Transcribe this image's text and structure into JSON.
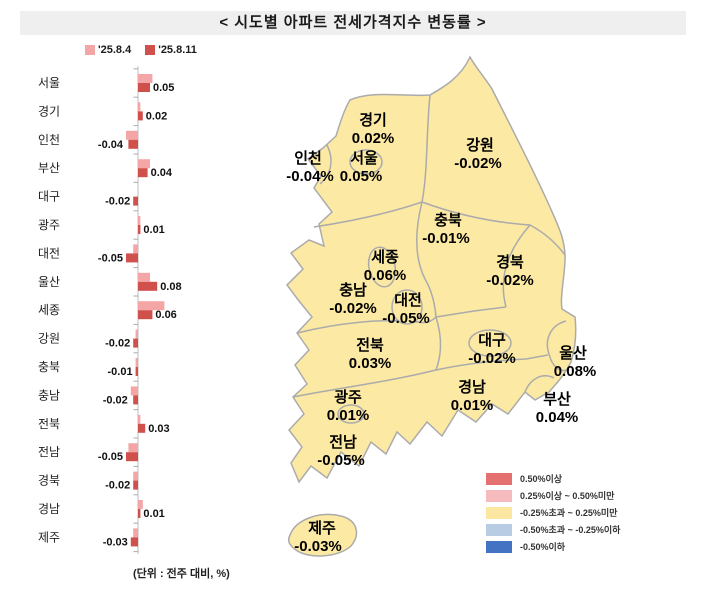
{
  "title": "< 시도별 아파트 전세가격지수 변동률 >",
  "chart": {
    "legend": [
      {
        "label": "'25.8.4",
        "color": "#F4A6A6"
      },
      {
        "label": "'25.8.11",
        "color": "#D0504C"
      }
    ],
    "unit_note": "(단위 : 전주 대비, %)"
  },
  "chart_data": {
    "type": "bar",
    "orientation": "horizontal",
    "title": "시도별 아파트 전세가격지수 변동률",
    "unit": "전주 대비, %",
    "categories": [
      "서울",
      "경기",
      "인천",
      "부산",
      "대구",
      "광주",
      "대전",
      "울산",
      "세종",
      "강원",
      "충북",
      "충남",
      "전북",
      "전남",
      "경북",
      "경남",
      "제주"
    ],
    "series": [
      {
        "name": "'25.8.4",
        "values": [
          0.06,
          0.01,
          -0.05,
          0.05,
          0.0,
          0.01,
          -0.02,
          0.05,
          0.11,
          -0.01,
          -0.01,
          -0.03,
          0.01,
          -0.04,
          -0.02,
          0.02,
          -0.02
        ]
      },
      {
        "name": "'25.8.11",
        "values": [
          0.05,
          0.02,
          -0.04,
          0.04,
          -0.02,
          0.01,
          -0.05,
          0.08,
          0.06,
          -0.02,
          -0.01,
          -0.02,
          0.03,
          -0.05,
          -0.02,
          0.01,
          -0.03
        ]
      }
    ],
    "value_labels": [
      "0.05",
      "0.02",
      "-0.04",
      "0.04",
      "-0.02",
      "0.01",
      "-0.05",
      "0.08",
      "0.06",
      "-0.02",
      "-0.01",
      "-0.02",
      "0.03",
      "-0.05",
      "-0.02",
      "0.01",
      "-0.03"
    ],
    "value_labels_series": "'25.8.11",
    "xlim": [
      -0.15,
      0.15
    ],
    "grid": false,
    "legend_position": "top-left"
  },
  "map": {
    "land_color": "#FCE9A4",
    "border_color": "#ABABAB",
    "regions": [
      {
        "name": "경기",
        "value": "0.02%"
      },
      {
        "name": "강원",
        "value": "-0.02%"
      },
      {
        "name": "인천",
        "value": "-0.04%"
      },
      {
        "name": "서울",
        "value": "0.05%"
      },
      {
        "name": "충북",
        "value": "-0.01%"
      },
      {
        "name": "세종",
        "value": "0.06%"
      },
      {
        "name": "경북",
        "value": "-0.02%"
      },
      {
        "name": "충남",
        "value": "-0.02%"
      },
      {
        "name": "대전",
        "value": "-0.05%"
      },
      {
        "name": "전북",
        "value": "0.03%"
      },
      {
        "name": "대구",
        "value": "-0.02%"
      },
      {
        "name": "울산",
        "value": "0.08%"
      },
      {
        "name": "경남",
        "value": "0.01%"
      },
      {
        "name": "부산",
        "value": "0.04%"
      },
      {
        "name": "광주",
        "value": "0.01%"
      },
      {
        "name": "전남",
        "value": "-0.05%"
      },
      {
        "name": "제주",
        "value": "-0.03%"
      }
    ],
    "legend": [
      {
        "label": "0.50%이상",
        "color": "#E57070"
      },
      {
        "label": "0.25%이상 ~ 0.50%미만",
        "color": "#F5BBBE"
      },
      {
        "label": "-0.25%초과 ~ 0.25%미만",
        "color": "#FBE7A2"
      },
      {
        "label": "-0.50%초과 ~ -0.25%이하",
        "color": "#B8CCE4"
      },
      {
        "label": "-0.50%이하",
        "color": "#4573C4"
      }
    ]
  }
}
